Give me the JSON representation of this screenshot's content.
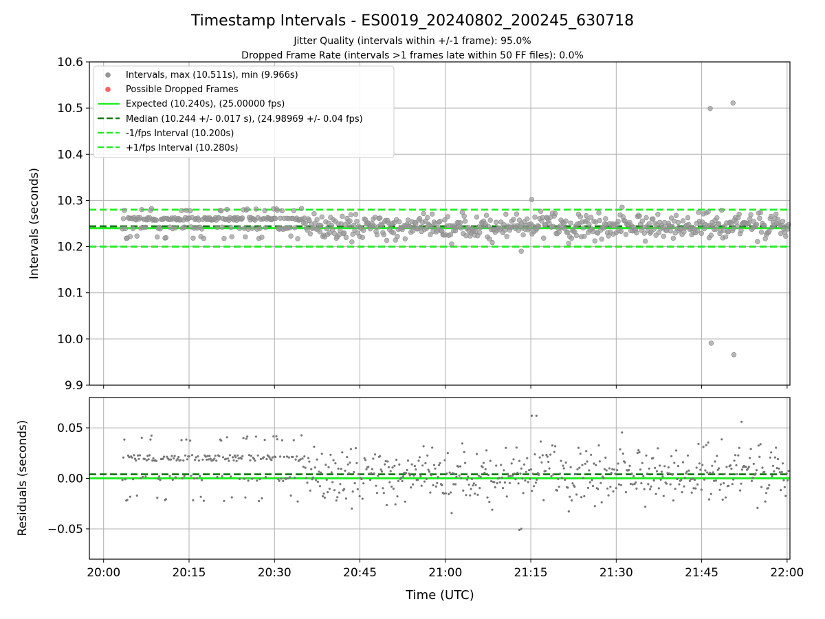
{
  "figure": {
    "title": "Timestamp Intervals - ES0019_20240802_200245_630718",
    "subtitle_1": "Jitter Quality (intervals within +/-1 frame): 95.0%",
    "subtitle_2": "Dropped Frame Rate (intervals >1 frames late within 50 FF files): 0.0%",
    "xlabel": "Time (UTC)",
    "x_ticks": [
      "20:00",
      "20:15",
      "20:30",
      "20:45",
      "21:00",
      "21:15",
      "21:30",
      "21:45",
      "22:00"
    ]
  },
  "colors": {
    "points": "#999999",
    "point_edge": "#8a8a8a",
    "dropped": "#ff6666",
    "expected": "#22ee22",
    "median": "#117a11",
    "bounds": "#22ee22",
    "residual_points": "#777777",
    "grid": "#b0b0b0"
  },
  "chart_data": [
    {
      "type": "scatter",
      "panel": "intervals",
      "ylabel": "Intervals (seconds)",
      "ylim": [
        9.9,
        10.6
      ],
      "y_ticks": [
        "9.9",
        "10.0",
        "10.1",
        "10.2",
        "10.3",
        "10.4",
        "10.5",
        "10.6"
      ],
      "xlim_minutes_after_20_00": [
        -2.5,
        120.5
      ],
      "grid": true,
      "legend_position": "top-left",
      "legend": [
        "Intervals, max (10.511s), min (9.966s)",
        "Possible Dropped Frames",
        "Expected (10.240s), (25.00000 fps)",
        "Median (10.244 +/- 0.017 s), (24.98969 +/- 0.04 fps)",
        "-1/fps Interval (10.200s)",
        "+1/fps Interval (10.280s)"
      ],
      "expected": 10.24,
      "median": 10.244,
      "lower_bound": 10.2,
      "upper_bound": 10.28,
      "max": 10.511,
      "min": 9.966,
      "outliers": [
        {
          "time": "21:46:30",
          "value": 10.499
        },
        {
          "time": "21:46:40",
          "value": 9.991
        },
        {
          "time": "21:50:30",
          "value": 10.511
        },
        {
          "time": "21:50:40",
          "value": 9.966
        },
        {
          "time": "21:15:10",
          "value": 10.302
        },
        {
          "time": "21:13:20",
          "value": 10.19
        }
      ],
      "series_note": "approx. 700 intervals between 20:03 and 22:00, mostly 10.22 - 10.28 s"
    },
    {
      "type": "scatter",
      "panel": "residuals",
      "ylabel": "Residuals (seconds)",
      "ylim": [
        -0.08,
        0.08
      ],
      "y_ticks": [
        "0.05",
        "0.00",
        "−0.05"
      ],
      "grid": true,
      "median_offset": 0.004,
      "expected_offset": 0.0,
      "extremes": [
        {
          "time": "21:16",
          "value": 0.062
        },
        {
          "time": "21:13",
          "value": -0.051
        },
        {
          "time": "21:52",
          "value": 0.056
        }
      ]
    }
  ]
}
